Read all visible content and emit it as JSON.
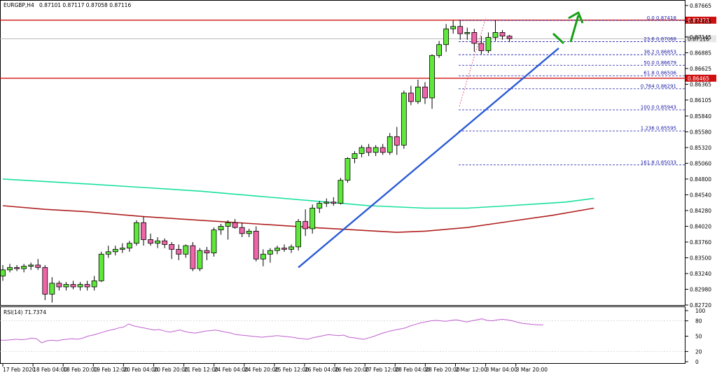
{
  "chart_data": {
    "type": "candlestick",
    "symbol_label": "EURGBP,H4",
    "ohlc_header": "0.87101 0.87117 0.87058 0.87116",
    "price_axis": {
      "ylim": [
        0.8272,
        0.8771
      ],
      "ticks": [
        "0.87665",
        "0.87405",
        "0.87145",
        "0.86885",
        "0.86625",
        "0.86365",
        "0.86105",
        "0.85840",
        "0.85580",
        "0.85320",
        "0.85060",
        "0.84800",
        "0.84540",
        "0.84280",
        "0.84020",
        "0.83760",
        "0.83500",
        "0.83240",
        "0.82980",
        "0.82720"
      ]
    },
    "time_axis": {
      "ticks": [
        "17 Feb 2020",
        "18 Feb 04:00",
        "18 Feb 20:00",
        "19 Feb 12:00",
        "20 Feb 04:00",
        "20 Feb 20:00",
        "21 Feb 12:00",
        "24 Feb 04:00",
        "24 Feb 20:00",
        "25 Feb 12:00",
        "26 Feb 04:00",
        "26 Feb 20:00",
        "27 Feb 12:00",
        "28 Feb 04:00",
        "28 Feb 20:00",
        "2 Mar 12:00",
        "3 Mar 04:00",
        "3 Mar 20:00"
      ]
    },
    "candles": [
      {
        "o": 0.832,
        "h": 0.8338,
        "l": 0.8312,
        "c": 0.833
      },
      {
        "o": 0.833,
        "h": 0.834,
        "l": 0.8326,
        "c": 0.8334
      },
      {
        "o": 0.8334,
        "h": 0.8338,
        "l": 0.8328,
        "c": 0.8332
      },
      {
        "o": 0.8332,
        "h": 0.834,
        "l": 0.8326,
        "c": 0.8336
      },
      {
        "o": 0.8336,
        "h": 0.8342,
        "l": 0.833,
        "c": 0.8338
      },
      {
        "o": 0.8338,
        "h": 0.8348,
        "l": 0.833,
        "c": 0.8334
      },
      {
        "o": 0.8334,
        "h": 0.8338,
        "l": 0.828,
        "c": 0.829
      },
      {
        "o": 0.829,
        "h": 0.8318,
        "l": 0.8276,
        "c": 0.8308
      },
      {
        "o": 0.8308,
        "h": 0.8312,
        "l": 0.8296,
        "c": 0.8302
      },
      {
        "o": 0.8302,
        "h": 0.831,
        "l": 0.8296,
        "c": 0.8306
      },
      {
        "o": 0.8306,
        "h": 0.8312,
        "l": 0.8298,
        "c": 0.8302
      },
      {
        "o": 0.8302,
        "h": 0.831,
        "l": 0.8296,
        "c": 0.8306
      },
      {
        "o": 0.8306,
        "h": 0.8312,
        "l": 0.8296,
        "c": 0.8302
      },
      {
        "o": 0.8302,
        "h": 0.832,
        "l": 0.8296,
        "c": 0.8312
      },
      {
        "o": 0.8312,
        "h": 0.836,
        "l": 0.831,
        "c": 0.8356
      },
      {
        "o": 0.8356,
        "h": 0.837,
        "l": 0.835,
        "c": 0.836
      },
      {
        "o": 0.836,
        "h": 0.837,
        "l": 0.8354,
        "c": 0.8364
      },
      {
        "o": 0.8364,
        "h": 0.8374,
        "l": 0.8358,
        "c": 0.8366
      },
      {
        "o": 0.8366,
        "h": 0.8378,
        "l": 0.836,
        "c": 0.8374
      },
      {
        "o": 0.8374,
        "h": 0.8412,
        "l": 0.837,
        "c": 0.8408
      },
      {
        "o": 0.8408,
        "h": 0.8418,
        "l": 0.837,
        "c": 0.838
      },
      {
        "o": 0.838,
        "h": 0.839,
        "l": 0.837,
        "c": 0.8374
      },
      {
        "o": 0.8374,
        "h": 0.8384,
        "l": 0.8366,
        "c": 0.8378
      },
      {
        "o": 0.8378,
        "h": 0.8382,
        "l": 0.8366,
        "c": 0.8372
      },
      {
        "o": 0.8372,
        "h": 0.8376,
        "l": 0.8348,
        "c": 0.8364
      },
      {
        "o": 0.8364,
        "h": 0.8372,
        "l": 0.8346,
        "c": 0.8356
      },
      {
        "o": 0.8356,
        "h": 0.8372,
        "l": 0.835,
        "c": 0.837
      },
      {
        "o": 0.837,
        "h": 0.8376,
        "l": 0.8328,
        "c": 0.8332
      },
      {
        "o": 0.8332,
        "h": 0.8366,
        "l": 0.8328,
        "c": 0.8362
      },
      {
        "o": 0.8362,
        "h": 0.8368,
        "l": 0.8346,
        "c": 0.8358
      },
      {
        "o": 0.8358,
        "h": 0.84,
        "l": 0.8352,
        "c": 0.8396
      },
      {
        "o": 0.8396,
        "h": 0.8406,
        "l": 0.8388,
        "c": 0.8402
      },
      {
        "o": 0.8402,
        "h": 0.8412,
        "l": 0.838,
        "c": 0.8408
      },
      {
        "o": 0.8408,
        "h": 0.8414,
        "l": 0.8398,
        "c": 0.84
      },
      {
        "o": 0.84,
        "h": 0.8408,
        "l": 0.8384,
        "c": 0.839
      },
      {
        "o": 0.839,
        "h": 0.8398,
        "l": 0.8384,
        "c": 0.8394
      },
      {
        "o": 0.8394,
        "h": 0.8402,
        "l": 0.8344,
        "c": 0.8348
      },
      {
        "o": 0.8348,
        "h": 0.8364,
        "l": 0.8336,
        "c": 0.8356
      },
      {
        "o": 0.8356,
        "h": 0.8366,
        "l": 0.8342,
        "c": 0.8362
      },
      {
        "o": 0.8362,
        "h": 0.837,
        "l": 0.8356,
        "c": 0.8366
      },
      {
        "o": 0.8366,
        "h": 0.8372,
        "l": 0.836,
        "c": 0.8364
      },
      {
        "o": 0.8364,
        "h": 0.8372,
        "l": 0.8358,
        "c": 0.8368
      },
      {
        "o": 0.8368,
        "h": 0.8414,
        "l": 0.8362,
        "c": 0.841
      },
      {
        "o": 0.841,
        "h": 0.843,
        "l": 0.8386,
        "c": 0.8398
      },
      {
        "o": 0.8398,
        "h": 0.8438,
        "l": 0.839,
        "c": 0.8432
      },
      {
        "o": 0.8432,
        "h": 0.8444,
        "l": 0.8424,
        "c": 0.844
      },
      {
        "o": 0.844,
        "h": 0.8448,
        "l": 0.8434,
        "c": 0.8442
      },
      {
        "o": 0.8442,
        "h": 0.845,
        "l": 0.8436,
        "c": 0.844
      },
      {
        "o": 0.844,
        "h": 0.8482,
        "l": 0.8438,
        "c": 0.8478
      },
      {
        "o": 0.8478,
        "h": 0.8516,
        "l": 0.8474,
        "c": 0.8514
      },
      {
        "o": 0.8514,
        "h": 0.8526,
        "l": 0.8506,
        "c": 0.8522
      },
      {
        "o": 0.8522,
        "h": 0.8536,
        "l": 0.8516,
        "c": 0.8532
      },
      {
        "o": 0.8532,
        "h": 0.8538,
        "l": 0.8518,
        "c": 0.8524
      },
      {
        "o": 0.8524,
        "h": 0.8536,
        "l": 0.8518,
        "c": 0.8532
      },
      {
        "o": 0.8532,
        "h": 0.8538,
        "l": 0.852,
        "c": 0.8524
      },
      {
        "o": 0.8524,
        "h": 0.8556,
        "l": 0.852,
        "c": 0.855
      },
      {
        "o": 0.855,
        "h": 0.8566,
        "l": 0.852,
        "c": 0.8536
      },
      {
        "o": 0.8536,
        "h": 0.8626,
        "l": 0.853,
        "c": 0.8622
      },
      {
        "o": 0.8622,
        "h": 0.8634,
        "l": 0.8602,
        "c": 0.8608
      },
      {
        "o": 0.8608,
        "h": 0.8644,
        "l": 0.8604,
        "c": 0.8632
      },
      {
        "o": 0.8632,
        "h": 0.864,
        "l": 0.8604,
        "c": 0.8614
      },
      {
        "o": 0.8614,
        "h": 0.8686,
        "l": 0.8596,
        "c": 0.8684
      },
      {
        "o": 0.8684,
        "h": 0.8708,
        "l": 0.868,
        "c": 0.8702
      },
      {
        "o": 0.8702,
        "h": 0.8736,
        "l": 0.869,
        "c": 0.8728
      },
      {
        "o": 0.8728,
        "h": 0.8742,
        "l": 0.872,
        "c": 0.8732
      },
      {
        "o": 0.8732,
        "h": 0.8742,
        "l": 0.871,
        "c": 0.872
      },
      {
        "o": 0.872,
        "h": 0.873,
        "l": 0.871,
        "c": 0.8722
      },
      {
        "o": 0.8722,
        "h": 0.8728,
        "l": 0.869,
        "c": 0.8704
      },
      {
        "o": 0.8704,
        "h": 0.8716,
        "l": 0.8686,
        "c": 0.8692
      },
      {
        "o": 0.8692,
        "h": 0.8722,
        "l": 0.8688,
        "c": 0.8714
      },
      {
        "o": 0.8714,
        "h": 0.8742,
        "l": 0.8708,
        "c": 0.8722
      },
      {
        "o": 0.8722,
        "h": 0.8726,
        "l": 0.871,
        "c": 0.8716
      },
      {
        "o": 0.8716,
        "h": 0.8718,
        "l": 0.8706,
        "c": 0.8712
      }
    ],
    "moving_averages": [
      {
        "color": "#19e0a0",
        "points": [
          [
            0,
            0.848
          ],
          [
            6,
            0.8476
          ],
          [
            12,
            0.8472
          ],
          [
            20,
            0.8466
          ],
          [
            28,
            0.846
          ],
          [
            36,
            0.8452
          ],
          [
            44,
            0.8444
          ],
          [
            52,
            0.8436
          ],
          [
            60,
            0.8432
          ],
          [
            66,
            0.8432
          ],
          [
            72,
            0.8436
          ],
          [
            80,
            0.8442
          ],
          [
            84,
            0.8448
          ]
        ]
      },
      {
        "color": "#b02020",
        "points": [
          [
            0,
            0.8436
          ],
          [
            6,
            0.843
          ],
          [
            12,
            0.8426
          ],
          [
            20,
            0.8418
          ],
          [
            28,
            0.8412
          ],
          [
            36,
            0.8406
          ],
          [
            44,
            0.84
          ],
          [
            50,
            0.8396
          ],
          [
            56,
            0.8392
          ],
          [
            60,
            0.8394
          ],
          [
            66,
            0.84
          ],
          [
            72,
            0.841
          ],
          [
            78,
            0.842
          ],
          [
            84,
            0.8432
          ]
        ]
      }
    ],
    "horizontal_lines": [
      {
        "price": 0.87423,
        "color": "#d01010",
        "label": "0.87423"
      },
      {
        "price": 0.86465,
        "color": "#d01010",
        "label": "0.86465"
      },
      {
        "price": 0.87116,
        "color": "#b0b0b0",
        "label": "0.87116"
      }
    ],
    "fibonacci": [
      {
        "label": "0.0  0.87418",
        "price": 0.87418
      },
      {
        "label": "23.6  0.87068",
        "price": 0.87068
      },
      {
        "label": "38.2  0.86853",
        "price": 0.86853
      },
      {
        "label": "50.0  0.86679",
        "price": 0.86679
      },
      {
        "label": "61.8  0.86506",
        "price": 0.86506
      },
      {
        "label": "0.764  0.86291",
        "price": 0.86291
      },
      {
        "label": "100.0  0.85943",
        "price": 0.85943
      },
      {
        "label": "1.236  0.85595",
        "price": 0.85595
      },
      {
        "label": "161.8  0.85033",
        "price": 0.85033
      }
    ],
    "trendline": {
      "color": "#2b5bd6",
      "from": [
        42,
        0.8334
      ],
      "to": [
        79,
        0.8696
      ]
    },
    "rsi": {
      "label": "RSI(14) 71.7374",
      "levels": [
        100,
        80,
        50,
        20,
        0
      ],
      "color": "#c060d0",
      "values": [
        42,
        42,
        43,
        44,
        43,
        44,
        46,
        45,
        37,
        41,
        42,
        41,
        43,
        44,
        45,
        44,
        46,
        50,
        52,
        55,
        58,
        61,
        63,
        66,
        68,
        74,
        70,
        68,
        66,
        64,
        62,
        63,
        60,
        58,
        60,
        62,
        59,
        57,
        56,
        58,
        60,
        61,
        62,
        60,
        58,
        56,
        53,
        52,
        51,
        50,
        49,
        48,
        49,
        50,
        51,
        50,
        49,
        48,
        46,
        45,
        44,
        47,
        49,
        51,
        53,
        52,
        51,
        52,
        48,
        47,
        45,
        44,
        47,
        50,
        54,
        57,
        60,
        62,
        64,
        66,
        70,
        73,
        76,
        78,
        80,
        81,
        80,
        79,
        81,
        82,
        80,
        78,
        80,
        82,
        84,
        81,
        80,
        82,
        83,
        82,
        80,
        77,
        75,
        74,
        73,
        72,
        72
      ]
    }
  }
}
